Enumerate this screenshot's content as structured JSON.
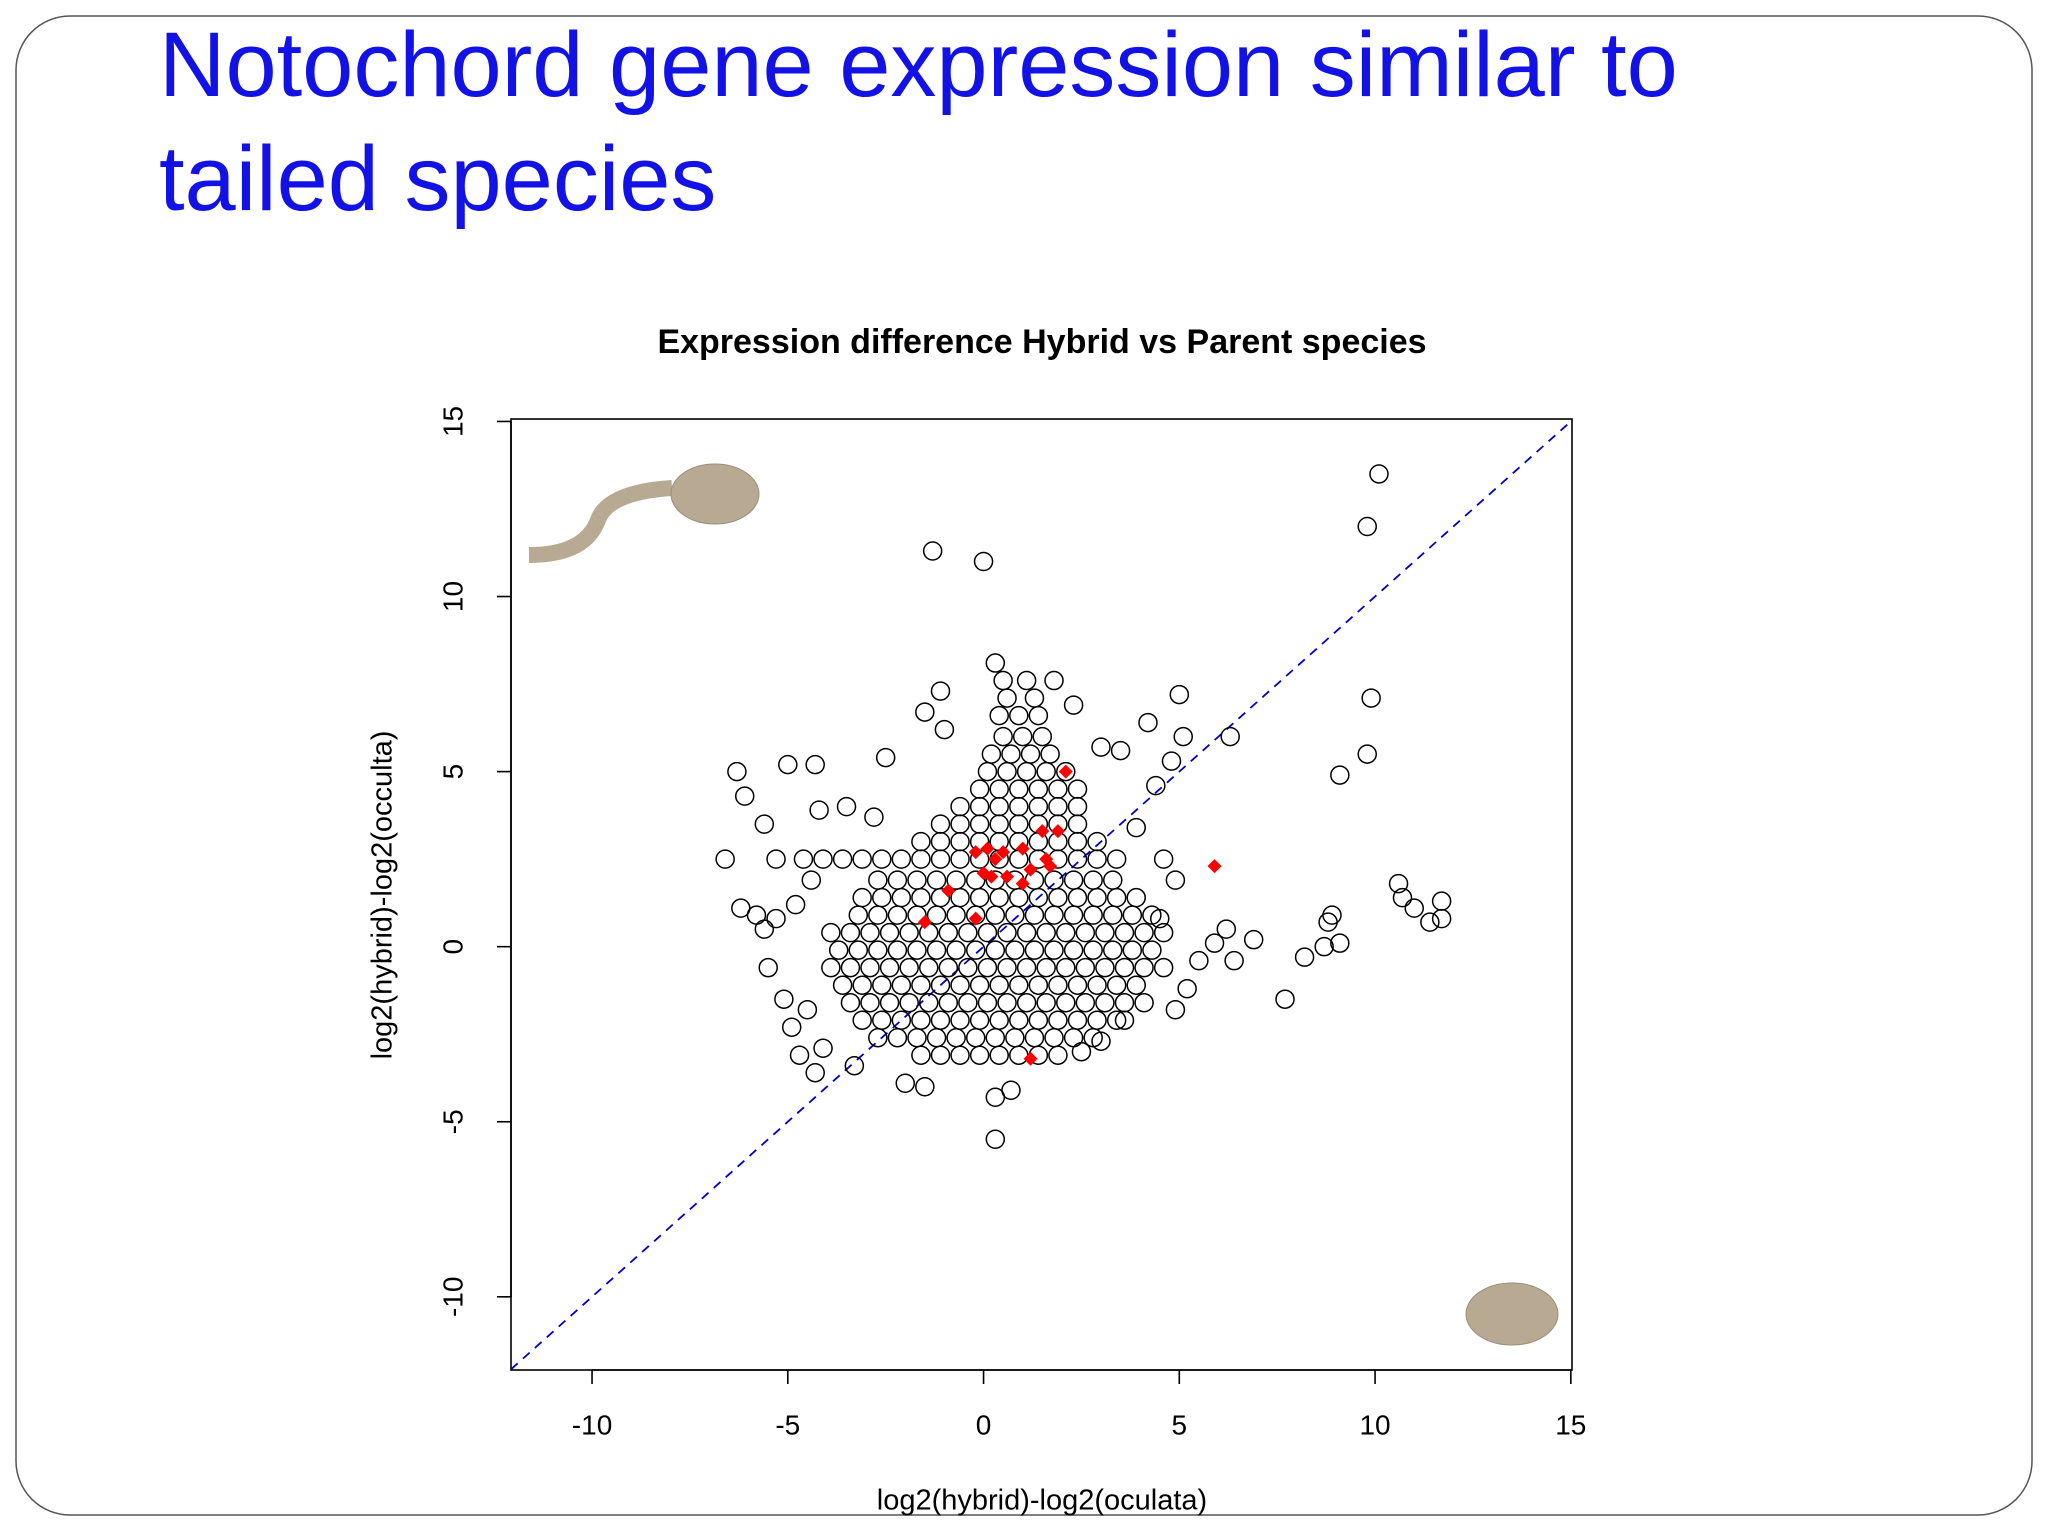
{
  "slide": {
    "title": "Notochord gene expression similar to tailed species"
  },
  "chart_data": {
    "type": "scatter",
    "title": "Expression difference Hybrid vs Parent species",
    "xlabel": "log2(hybrid)-log2(oculata)",
    "ylabel": "log2(hybrid)-log2(occulta)",
    "xlim": [
      -12.07,
      15.03
    ],
    "ylim": [
      -12.09,
      15.07
    ],
    "xticks": [
      -10,
      -5,
      0,
      5,
      10,
      15
    ],
    "yticks": [
      -10,
      -5,
      0,
      5,
      10,
      15
    ],
    "grid": false,
    "diagonal": true,
    "diagonal_color": "#0000cc",
    "series": [
      {
        "color": "#000000",
        "marker": "circle-open",
        "x": [
          -1.6,
          -1.1,
          -0.6,
          -0.1,
          0.4,
          0.9,
          1.4,
          1.9,
          -2.7,
          -2.2,
          -1.7,
          -1.2,
          -0.7,
          -0.2,
          0.3,
          0.8,
          1.3,
          1.8,
          2.3,
          2.8,
          -3.1,
          -2.6,
          -2.1,
          -1.6,
          -1.1,
          -0.6,
          -0.1,
          0.4,
          0.9,
          1.4,
          1.9,
          2.4,
          2.9,
          3.4,
          -3.4,
          -2.9,
          -2.4,
          -1.9,
          -1.4,
          -0.9,
          -0.4,
          0.1,
          0.6,
          1.1,
          1.6,
          2.1,
          2.6,
          3.1,
          3.6,
          4.1,
          -3.6,
          -3.1,
          -2.6,
          -2.1,
          -1.6,
          -1.1,
          -0.6,
          -0.1,
          0.4,
          0.9,
          1.4,
          1.9,
          2.4,
          2.9,
          3.4,
          3.9,
          -3.9,
          -3.4,
          -2.9,
          -2.4,
          -1.9,
          -1.4,
          -0.9,
          -0.4,
          0.1,
          0.6,
          1.1,
          1.6,
          2.1,
          2.6,
          3.1,
          3.6,
          4.1,
          4.6,
          -3.7,
          -3.2,
          -2.7,
          -2.2,
          -1.7,
          -1.2,
          -0.7,
          -0.2,
          0.3,
          0.8,
          1.3,
          1.8,
          2.3,
          2.8,
          3.3,
          3.8,
          4.3,
          -3.9,
          -3.4,
          -2.9,
          -2.4,
          -1.9,
          -1.4,
          -0.9,
          -0.4,
          0.1,
          0.6,
          1.1,
          1.6,
          2.1,
          2.6,
          3.1,
          3.6,
          4.1,
          4.6,
          -3.2,
          -2.7,
          -2.2,
          -1.7,
          -1.2,
          -0.7,
          -0.2,
          0.3,
          0.8,
          1.3,
          1.8,
          2.3,
          2.8,
          3.3,
          3.8,
          4.3,
          -3.1,
          -2.6,
          -2.1,
          -1.6,
          -1.1,
          -0.6,
          -0.1,
          0.4,
          0.9,
          1.4,
          1.9,
          2.4,
          2.9,
          3.4,
          3.9,
          -2.7,
          -2.2,
          -1.7,
          -1.2,
          -0.7,
          -0.2,
          0.3,
          0.8,
          1.3,
          1.8,
          2.3,
          2.8,
          3.3,
          -4.6,
          -4.1,
          -3.6,
          -3.1,
          -2.6,
          -2.1,
          -1.6,
          -1.1,
          -0.6,
          -0.1,
          0.4,
          0.9,
          1.4,
          1.9,
          2.4,
          2.9,
          3.4,
          -1.6,
          -1.1,
          -0.6,
          -0.1,
          0.4,
          0.9,
          1.4,
          1.9,
          2.4,
          2.9,
          -1.1,
          -0.6,
          -0.1,
          0.4,
          0.9,
          1.4,
          1.9,
          2.4,
          -0.6,
          -0.1,
          0.4,
          0.9,
          1.4,
          1.9,
          2.4,
          -0.1,
          0.4,
          0.9,
          1.4,
          1.9,
          2.4,
          0.1,
          0.6,
          1.1,
          1.6,
          2.1,
          0.2,
          0.7,
          1.2,
          1.7,
          0.5,
          1.0,
          1.5,
          0.4,
          0.9,
          1.4,
          0.6,
          1.3,
          0.5,
          1.1,
          10.1,
          9.8,
          -1.3,
          0,
          9.9,
          5,
          9.8,
          9.1,
          6.3,
          5.1,
          4.8,
          4.2,
          4.4,
          -6.3,
          -6.1,
          -5,
          -4.3,
          -5.6,
          -6.6,
          -6.2,
          -5.8,
          -5.3,
          -4.8,
          -5.5,
          -5.6,
          -5.1,
          -4.9,
          -4.7,
          -4.3,
          -4.1,
          -3.3,
          -2,
          -1.5,
          0.3,
          0.7,
          0.3,
          2.5,
          3,
          3.6,
          4.9,
          4.5,
          5.5,
          5.9,
          6.2,
          6.4,
          6.9,
          7.7,
          8.2,
          8.8,
          8.9,
          9.1,
          8.7,
          10.6,
          10.7,
          11,
          11.4,
          11.7,
          11.7,
          -1.5,
          -1.1,
          -1,
          0.3,
          1.8,
          2.3,
          3,
          3.5,
          -2.5,
          -4.2,
          -3.5,
          -2.8,
          -5.3,
          -4.5,
          -4.4,
          4.6,
          4.9,
          5.2,
          3.9
        ],
        "values": [
          -3.1,
          -3.1,
          -3.1,
          -3.1,
          -3.1,
          -3.1,
          -3.1,
          -3.1,
          -2.6,
          -2.6,
          -2.6,
          -2.6,
          -2.6,
          -2.6,
          -2.6,
          -2.6,
          -2.6,
          -2.6,
          -2.6,
          -2.6,
          -2.1,
          -2.1,
          -2.1,
          -2.1,
          -2.1,
          -2.1,
          -2.1,
          -2.1,
          -2.1,
          -2.1,
          -2.1,
          -2.1,
          -2.1,
          -2.1,
          -1.6,
          -1.6,
          -1.6,
          -1.6,
          -1.6,
          -1.6,
          -1.6,
          -1.6,
          -1.6,
          -1.6,
          -1.6,
          -1.6,
          -1.6,
          -1.6,
          -1.6,
          -1.6,
          -1.1,
          -1.1,
          -1.1,
          -1.1,
          -1.1,
          -1.1,
          -1.1,
          -1.1,
          -1.1,
          -1.1,
          -1.1,
          -1.1,
          -1.1,
          -1.1,
          -1.1,
          -1.1,
          -0.6,
          -0.6,
          -0.6,
          -0.6,
          -0.6,
          -0.6,
          -0.6,
          -0.6,
          -0.6,
          -0.6,
          -0.6,
          -0.6,
          -0.6,
          -0.6,
          -0.6,
          -0.6,
          -0.6,
          -0.6,
          -0.1,
          -0.1,
          -0.1,
          -0.1,
          -0.1,
          -0.1,
          -0.1,
          -0.1,
          -0.1,
          -0.1,
          -0.1,
          -0.1,
          -0.1,
          -0.1,
          -0.1,
          -0.1,
          -0.1,
          0.4,
          0.4,
          0.4,
          0.4,
          0.4,
          0.4,
          0.4,
          0.4,
          0.4,
          0.4,
          0.4,
          0.4,
          0.4,
          0.4,
          0.4,
          0.4,
          0.4,
          0.4,
          0.9,
          0.9,
          0.9,
          0.9,
          0.9,
          0.9,
          0.9,
          0.9,
          0.9,
          0.9,
          0.9,
          0.9,
          0.9,
          0.9,
          0.9,
          0.9,
          1.4,
          1.4,
          1.4,
          1.4,
          1.4,
          1.4,
          1.4,
          1.4,
          1.4,
          1.4,
          1.4,
          1.4,
          1.4,
          1.4,
          1.4,
          1.9,
          1.9,
          1.9,
          1.9,
          1.9,
          1.9,
          1.9,
          1.9,
          1.9,
          1.9,
          1.9,
          1.9,
          1.9,
          2.5,
          2.5,
          2.5,
          2.5,
          2.5,
          2.5,
          2.5,
          2.5,
          2.5,
          2.5,
          2.5,
          2.5,
          2.5,
          2.5,
          2.5,
          2.5,
          2.5,
          3,
          3,
          3,
          3,
          3,
          3,
          3,
          3,
          3,
          3,
          3.5,
          3.5,
          3.5,
          3.5,
          3.5,
          3.5,
          3.5,
          3.5,
          4,
          4,
          4,
          4,
          4,
          4,
          4,
          4.5,
          4.5,
          4.5,
          4.5,
          4.5,
          4.5,
          5,
          5,
          5,
          5,
          5,
          5.5,
          5.5,
          5.5,
          5.5,
          6,
          6,
          6,
          6.6,
          6.6,
          6.6,
          7.1,
          7.1,
          7.6,
          7.6,
          13.5,
          12,
          11.3,
          11,
          7.1,
          7.2,
          5.5,
          4.9,
          6,
          6,
          5.3,
          6.4,
          4.6,
          5,
          4.3,
          5.2,
          5.2,
          3.5,
          2.5,
          1.1,
          0.9,
          0.8,
          1.2,
          -0.6,
          0.5,
          -1.5,
          -2.3,
          -3.1,
          -3.6,
          -2.9,
          -3.4,
          -3.9,
          -4,
          -4.3,
          -4.1,
          -5.5,
          -3,
          -2.7,
          -2.1,
          -1.8,
          0.8,
          -0.4,
          0.1,
          0.5,
          -0.4,
          0.2,
          -1.5,
          -0.3,
          0.7,
          0.9,
          0.1,
          0,
          1.8,
          1.4,
          1.1,
          0.7,
          1.3,
          0.8,
          6.7,
          7.3,
          6.2,
          8.1,
          7.6,
          6.9,
          5.7,
          5.6,
          5.4,
          3.9,
          4,
          3.7,
          2.5,
          -1.8,
          1.9,
          2.5,
          1.9,
          -1.2,
          3.4
        ]
      },
      {
        "color": "#ff0000",
        "marker": "diamond",
        "x": [
          2.1,
          1.5,
          1.9,
          -0.2,
          0.1,
          0.5,
          1,
          0.3,
          1.6,
          1.2,
          0,
          0.2,
          0.6,
          1,
          1.7,
          -0.9,
          -1.5,
          -0.2,
          5.9,
          1.2
        ],
        "values": [
          5,
          3.3,
          3.3,
          2.7,
          2.8,
          2.7,
          2.8,
          2.5,
          2.5,
          2.2,
          2.1,
          2,
          2,
          1.8,
          2.3,
          1.6,
          0.7,
          0.8,
          2.3,
          -3.2
        ]
      }
    ]
  }
}
